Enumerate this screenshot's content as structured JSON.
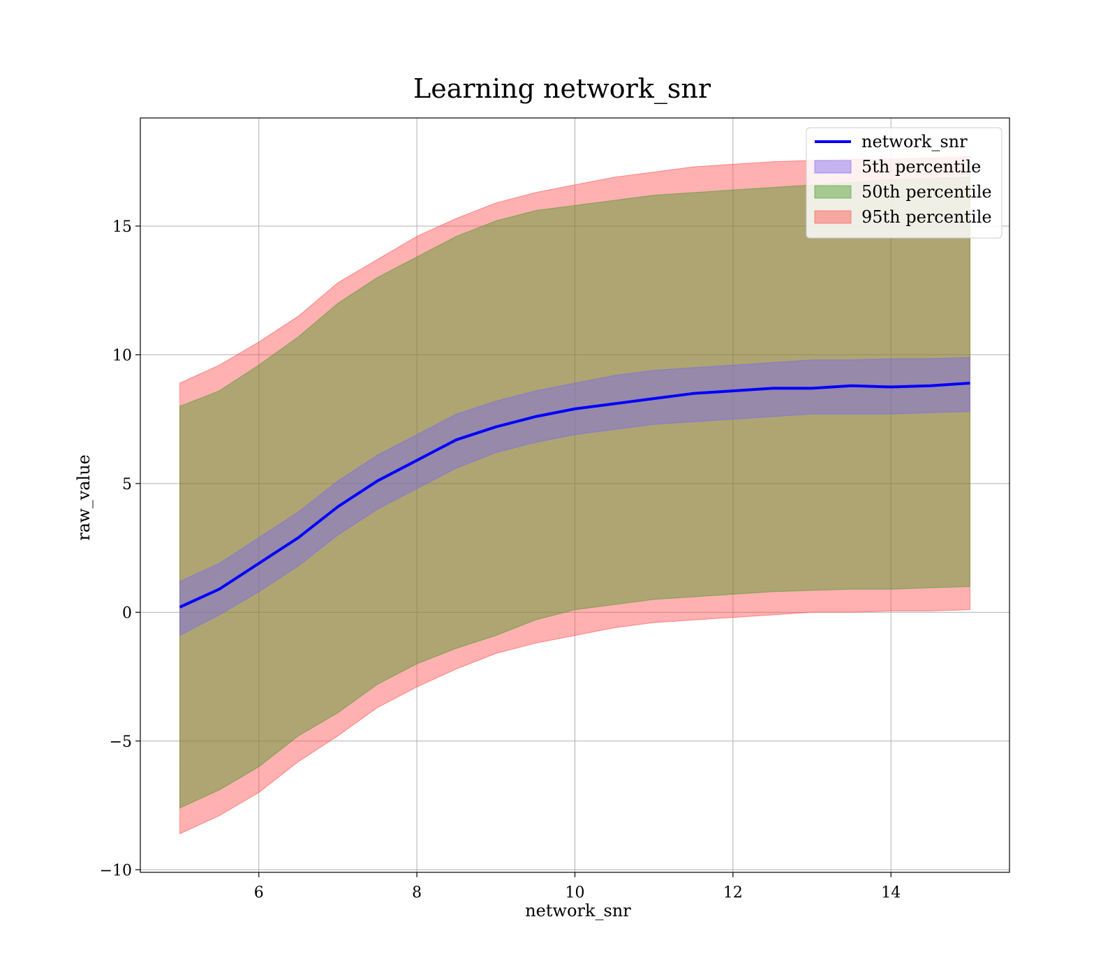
{
  "chart_data": {
    "type": "area",
    "title": "Learning network_snr",
    "xlabel": "network_snr",
    "ylabel": "raw_value",
    "xlim": [
      4.5,
      15.5
    ],
    "ylim": [
      -10.1,
      19.2
    ],
    "xticks": [
      6,
      8,
      10,
      12,
      14
    ],
    "yticks": [
      -10,
      -5,
      0,
      5,
      10,
      15
    ],
    "grid": true,
    "legend_position": "top-right",
    "x": [
      5,
      5.5,
      6,
      6.5,
      7,
      7.5,
      8,
      8.5,
      9,
      9.5,
      10,
      10.5,
      11,
      11.5,
      12,
      12.5,
      13,
      13.5,
      14,
      14.5,
      15
    ],
    "series": [
      {
        "name": "network_snr",
        "kind": "line",
        "color": "#0000ff",
        "values": [
          0.2,
          0.9,
          1.9,
          2.9,
          4.1,
          5.1,
          5.9,
          6.7,
          7.2,
          7.6,
          7.9,
          8.1,
          8.3,
          8.5,
          8.6,
          8.7,
          8.7,
          8.8,
          8.75,
          8.8,
          8.9
        ]
      },
      {
        "name": "5th percentile",
        "kind": "band",
        "color": "#7b68ee",
        "lower": [
          -0.9,
          -0.1,
          0.8,
          1.8,
          3.0,
          4.0,
          4.8,
          5.6,
          6.2,
          6.6,
          6.9,
          7.1,
          7.3,
          7.4,
          7.5,
          7.6,
          7.7,
          7.7,
          7.7,
          7.75,
          7.8
        ],
        "upper": [
          1.2,
          1.9,
          2.9,
          3.9,
          5.1,
          6.1,
          6.9,
          7.7,
          8.2,
          8.6,
          8.9,
          9.2,
          9.4,
          9.5,
          9.6,
          9.7,
          9.8,
          9.8,
          9.85,
          9.85,
          9.9
        ]
      },
      {
        "name": "50th percentile",
        "kind": "band",
        "color": "#4c9a2a",
        "lower": [
          -7.6,
          -6.9,
          -6.0,
          -4.8,
          -3.9,
          -2.8,
          -2.0,
          -1.4,
          -0.9,
          -0.3,
          0.1,
          0.3,
          0.5,
          0.6,
          0.7,
          0.8,
          0.85,
          0.9,
          0.9,
          0.95,
          1.0
        ],
        "upper": [
          8.0,
          8.6,
          9.6,
          10.7,
          12.0,
          13.0,
          13.8,
          14.6,
          15.2,
          15.6,
          15.8,
          16.0,
          16.2,
          16.3,
          16.4,
          16.5,
          16.6,
          16.7,
          16.8,
          16.85,
          16.9
        ]
      },
      {
        "name": "95th percentile",
        "kind": "band",
        "color": "#ff4f4f",
        "lower": [
          -8.6,
          -7.9,
          -7.0,
          -5.8,
          -4.8,
          -3.7,
          -2.9,
          -2.2,
          -1.6,
          -1.2,
          -0.9,
          -0.6,
          -0.4,
          -0.3,
          -0.2,
          -0.1,
          0.0,
          0.0,
          0.05,
          0.05,
          0.1
        ],
        "upper": [
          8.9,
          9.6,
          10.5,
          11.5,
          12.8,
          13.7,
          14.6,
          15.3,
          15.9,
          16.3,
          16.6,
          16.9,
          17.1,
          17.3,
          17.4,
          17.5,
          17.55,
          17.6,
          17.6,
          17.65,
          17.7
        ]
      }
    ]
  }
}
